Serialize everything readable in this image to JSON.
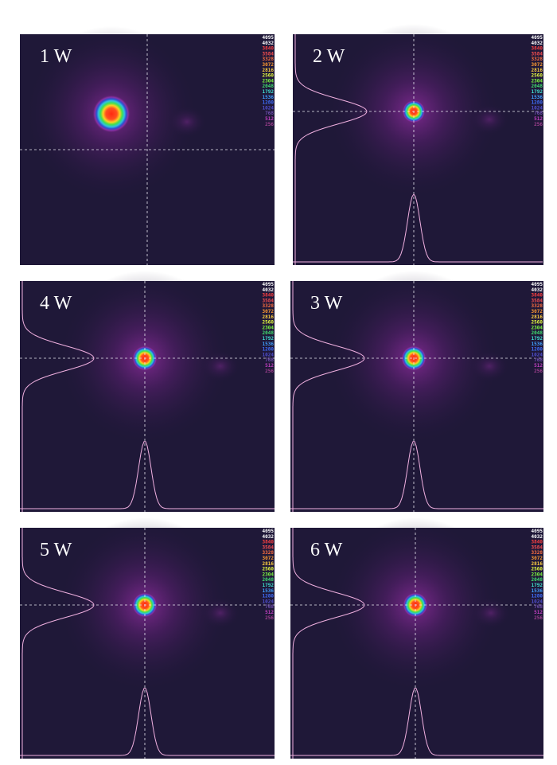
{
  "panels": [
    {
      "label": "1 W",
      "profiles": false
    },
    {
      "label": "2 W",
      "profiles": true
    },
    {
      "label": "4 W",
      "profiles": true
    },
    {
      "label": "3 W",
      "profiles": true
    },
    {
      "label": "5 W",
      "profiles": true
    },
    {
      "label": "6 W",
      "profiles": true
    }
  ],
  "colorscale": {
    "labels": [
      "4095",
      "4032",
      "3840",
      "3584",
      "3328",
      "3072",
      "2816",
      "2560",
      "2304",
      "2048",
      "1792",
      "1536",
      "1280",
      "1024",
      "768",
      "512",
      "256"
    ],
    "colors": [
      "#ffffff",
      "#ffffff",
      "#ff4040",
      "#ff5050",
      "#ff7040",
      "#ff9a30",
      "#ffd040",
      "#e8ff40",
      "#80ff40",
      "#40e070",
      "#40e0d0",
      "#40a0ff",
      "#4070ff",
      "#5050d0",
      "#7050b0",
      "#c040c0",
      "#a04090"
    ]
  }
}
